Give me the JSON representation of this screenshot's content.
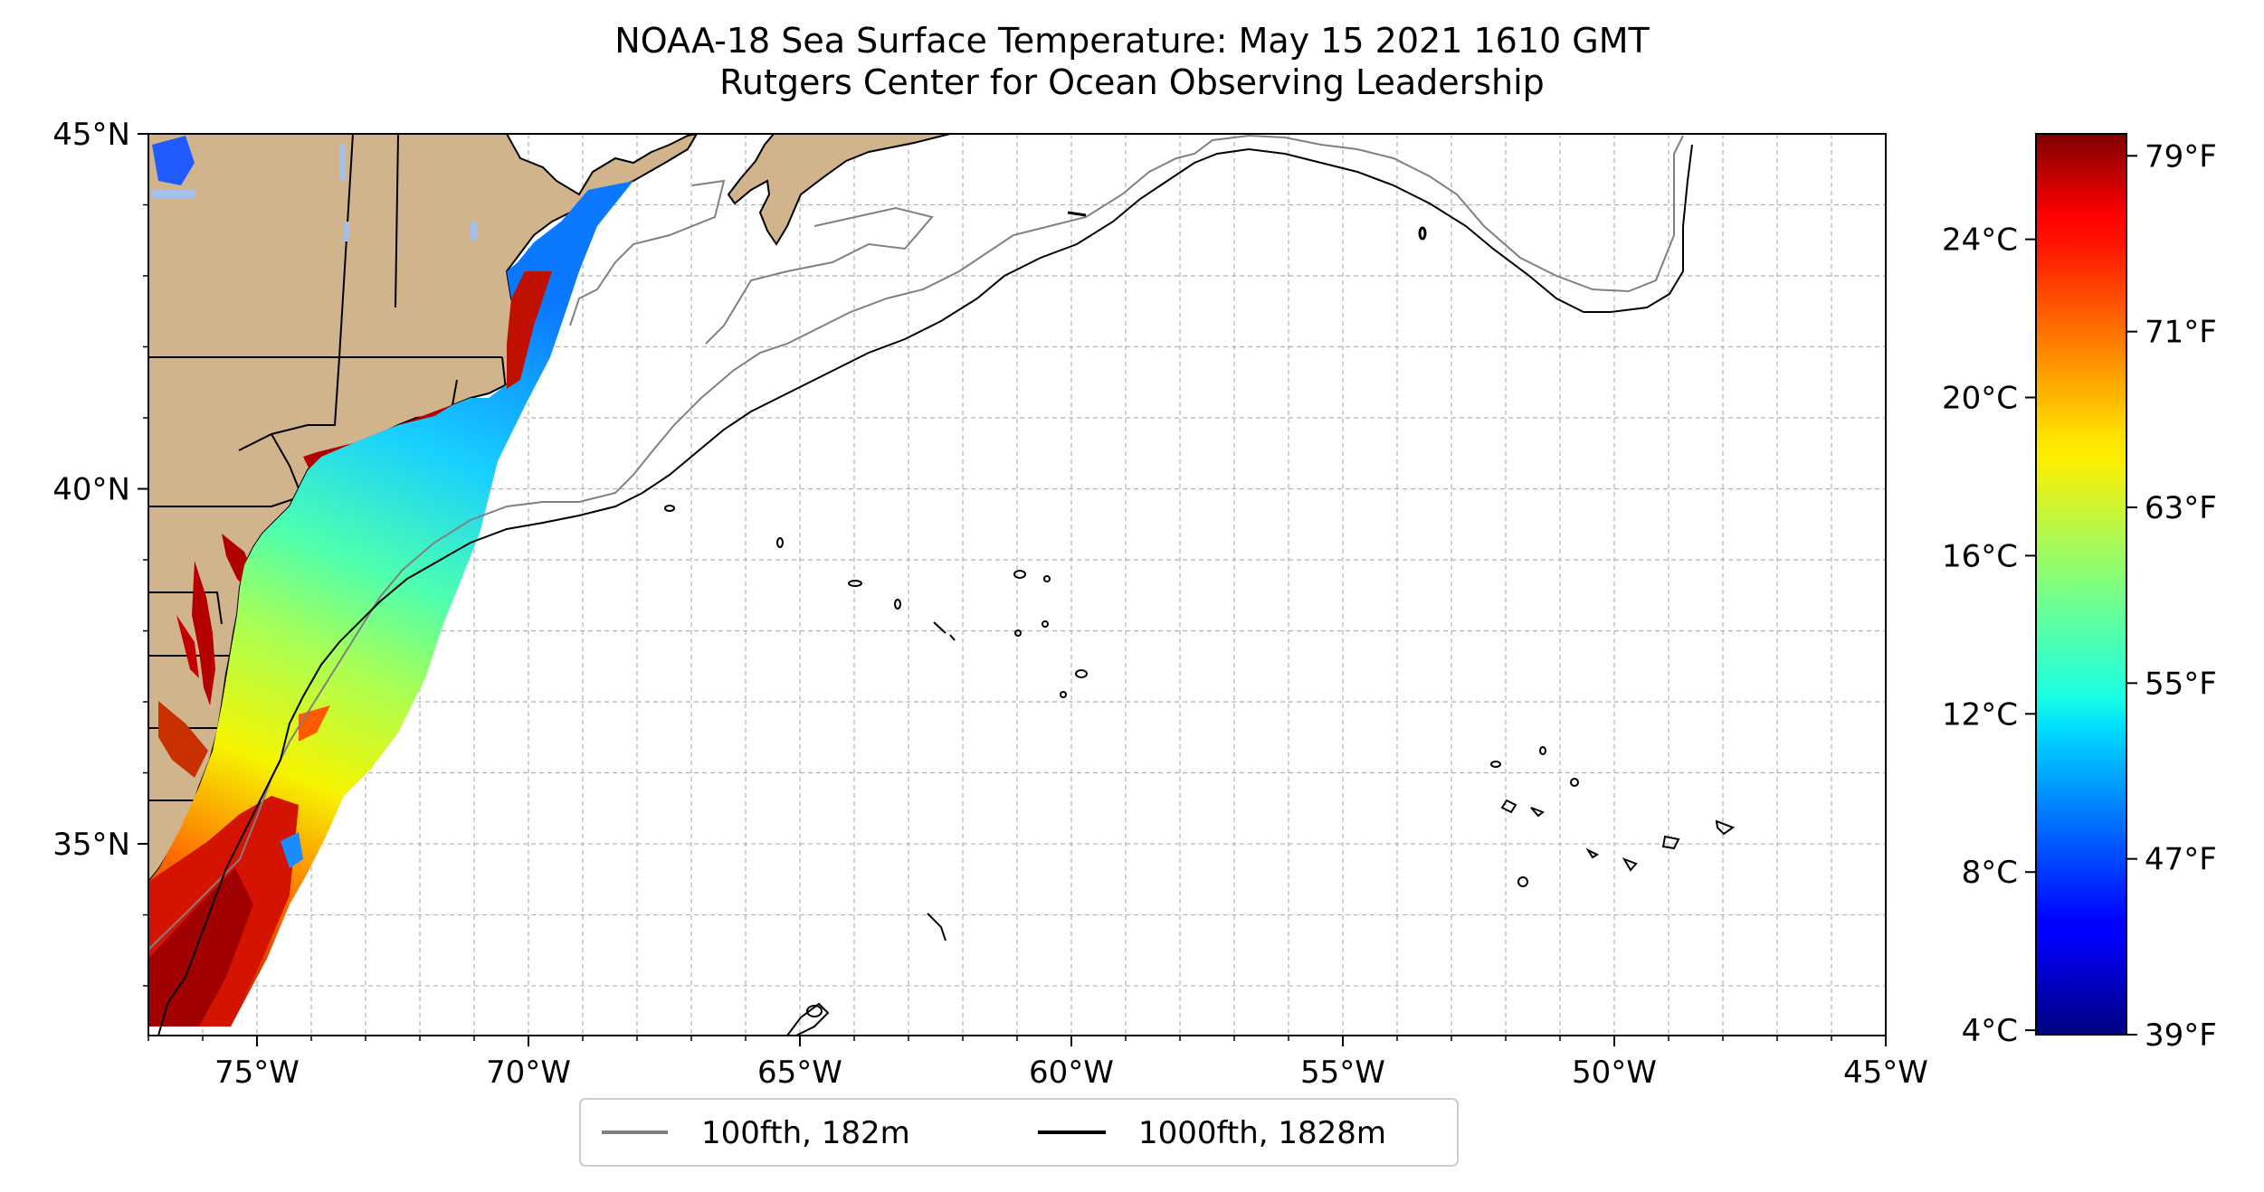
{
  "title": {
    "line1": "NOAA-18 Sea Surface Temperature: May 15 2021 1610 GMT",
    "line2": "Rutgers Center for Ocean Observing Leadership"
  },
  "map": {
    "lon_range": [
      -77,
      -45
    ],
    "lat_range": [
      32.3,
      45
    ],
    "lon_ticks": [
      {
        "value": -75,
        "label": "75°W"
      },
      {
        "value": -70,
        "label": "70°W"
      },
      {
        "value": -65,
        "label": "65°W"
      },
      {
        "value": -60,
        "label": "60°W"
      },
      {
        "value": -55,
        "label": "55°W"
      },
      {
        "value": -50,
        "label": "50°W"
      },
      {
        "value": -45,
        "label": "45°W"
      }
    ],
    "lat_ticks": [
      {
        "value": 45,
        "label": "45°N"
      },
      {
        "value": 40,
        "label": "40°N"
      },
      {
        "value": 35,
        "label": "35°N"
      }
    ],
    "grid": true,
    "land_color": "#d2b48c",
    "colors": {
      "shelf_100fth": "#808080",
      "slope_1000fth": "#000000"
    }
  },
  "legend": {
    "items": [
      {
        "label": "100fth, 182m",
        "color": "#808080"
      },
      {
        "label": "1000fth, 1828m",
        "color": "#000000"
      }
    ]
  },
  "colorbar": {
    "colormap": "jet",
    "celsius_ticks": [
      {
        "value": 4,
        "label": "4°C"
      },
      {
        "value": 8,
        "label": "8°C"
      },
      {
        "value": 12,
        "label": "12°C"
      },
      {
        "value": 16,
        "label": "16°C"
      },
      {
        "value": 20,
        "label": "20°C"
      },
      {
        "value": 24,
        "label": "24°C"
      }
    ],
    "fahrenheit_ticks": [
      {
        "value": 39,
        "label": "39°F"
      },
      {
        "value": 47,
        "label": "47°F"
      },
      {
        "value": 55,
        "label": "55°F"
      },
      {
        "value": 63,
        "label": "63°F"
      },
      {
        "value": 71,
        "label": "71°F"
      },
      {
        "value": 79,
        "label": "79°F"
      }
    ],
    "range_f": [
      39,
      80
    ]
  }
}
